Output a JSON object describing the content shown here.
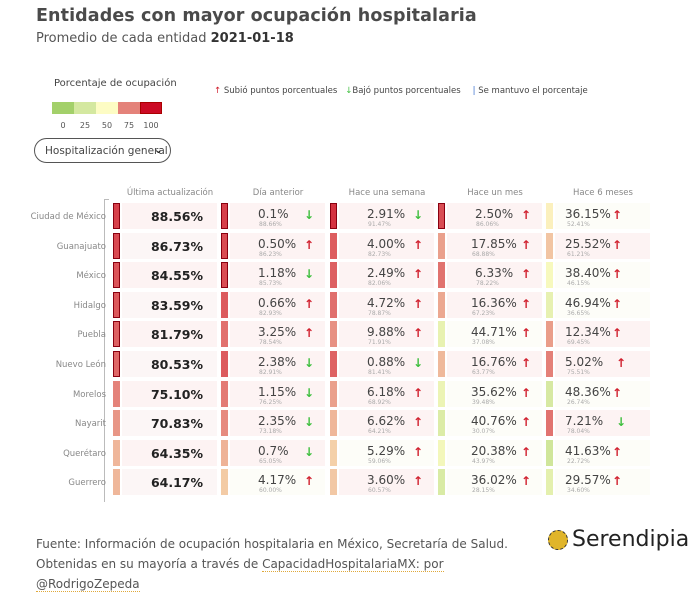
{
  "header": {
    "title": "Entidades con mayor ocupación hospitalaria",
    "subtitle_prefix": "Promedio de cada entidad",
    "subtitle_date": "2021-01-18"
  },
  "legend": {
    "title": "Porcentaje de ocupación",
    "swatch_colors": [
      "#a3d06a",
      "#d4e8a0",
      "#fdfcc4",
      "#e4827a",
      "#cc0a24"
    ],
    "ticks": [
      "0",
      "25",
      "50",
      "75",
      "100"
    ],
    "trend": {
      "up_icon": "arrow-up-icon",
      "up_label": "Subió puntos porcentuales",
      "down_icon": "arrow-down-icon",
      "down_label": "Bajó puntos porcentuales",
      "same_icon": "bar-icon",
      "same_label": "Se mantuvo el porcentaje"
    }
  },
  "dropdown": {
    "selected": "Hospitalización general",
    "icon": "chevron-down-icon"
  },
  "colors": {
    "up": "#d0202e",
    "down": "#3fbf3f",
    "same": "#3a6fcf",
    "cell_bg": "#fdf3f3"
  },
  "chart_data": {
    "type": "table",
    "title": "Entidades con mayor ocupación hospitalaria",
    "subtitle": "Promedio de cada entidad 2021-01-18",
    "columns": [
      "Última actualización",
      "Día anterior",
      "Hace una semana",
      "Hace un mes",
      "Hace 6 meses"
    ],
    "color_scale": {
      "domain": [
        0,
        25,
        50,
        75,
        100
      ],
      "colors": [
        "#a3d06a",
        "#d4e8a0",
        "#fdfcc4",
        "#e4827a",
        "#cc0a24"
      ]
    },
    "rows": [
      {
        "entity": "Ciudad de México",
        "latest": "88.56%",
        "latest_value": 88.56,
        "comparisons": [
          {
            "change": "0.1%",
            "prev": "88.66%",
            "prev_value": 88.66,
            "direction": "down"
          },
          {
            "change": "2.91%",
            "prev": "91.47%",
            "prev_value": 91.47,
            "direction": "down"
          },
          {
            "change": "2.50%",
            "prev": "86.06%",
            "prev_value": 86.06,
            "direction": "up"
          },
          {
            "change": "36.15%",
            "prev": "52.41%",
            "prev_value": 52.41,
            "direction": "up"
          }
        ]
      },
      {
        "entity": "Guanajuato",
        "latest": "86.73%",
        "latest_value": 86.73,
        "comparisons": [
          {
            "change": "0.50%",
            "prev": "86.23%",
            "prev_value": 86.23,
            "direction": "up"
          },
          {
            "change": "4.00%",
            "prev": "82.73%",
            "prev_value": 82.73,
            "direction": "up"
          },
          {
            "change": "17.85%",
            "prev": "68.88%",
            "prev_value": 68.88,
            "direction": "up"
          },
          {
            "change": "25.52%",
            "prev": "61.21%",
            "prev_value": 61.21,
            "direction": "up"
          }
        ]
      },
      {
        "entity": "México",
        "latest": "84.55%",
        "latest_value": 84.55,
        "comparisons": [
          {
            "change": "1.18%",
            "prev": "85.73%",
            "prev_value": 85.73,
            "direction": "down"
          },
          {
            "change": "2.49%",
            "prev": "82.06%",
            "prev_value": 82.06,
            "direction": "up"
          },
          {
            "change": "6.33%",
            "prev": "78.22%",
            "prev_value": 78.22,
            "direction": "up"
          },
          {
            "change": "38.40%",
            "prev": "46.15%",
            "prev_value": 46.15,
            "direction": "up"
          }
        ]
      },
      {
        "entity": "Hidalgo",
        "latest": "83.59%",
        "latest_value": 83.59,
        "comparisons": [
          {
            "change": "0.66%",
            "prev": "82.93%",
            "prev_value": 82.93,
            "direction": "up"
          },
          {
            "change": "4.72%",
            "prev": "78.87%",
            "prev_value": 78.87,
            "direction": "up"
          },
          {
            "change": "16.36%",
            "prev": "67.23%",
            "prev_value": 67.23,
            "direction": "up"
          },
          {
            "change": "46.94%",
            "prev": "36.65%",
            "prev_value": 36.65,
            "direction": "up"
          }
        ]
      },
      {
        "entity": "Puebla",
        "latest": "81.79%",
        "latest_value": 81.79,
        "comparisons": [
          {
            "change": "3.25%",
            "prev": "78.54%",
            "prev_value": 78.54,
            "direction": "up"
          },
          {
            "change": "9.88%",
            "prev": "71.91%",
            "prev_value": 71.91,
            "direction": "up"
          },
          {
            "change": "44.71%",
            "prev": "37.08%",
            "prev_value": 37.08,
            "direction": "up"
          },
          {
            "change": "12.34%",
            "prev": "69.45%",
            "prev_value": 69.45,
            "direction": "up"
          }
        ]
      },
      {
        "entity": "Nuevo León",
        "latest": "80.53%",
        "latest_value": 80.53,
        "comparisons": [
          {
            "change": "2.38%",
            "prev": "82.91%",
            "prev_value": 82.91,
            "direction": "down"
          },
          {
            "change": "0.88%",
            "prev": "81.41%",
            "prev_value": 81.41,
            "direction": "down"
          },
          {
            "change": "16.76%",
            "prev": "63.77%",
            "prev_value": 63.77,
            "direction": "up"
          },
          {
            "change": "5.02%",
            "prev": "75.51%",
            "prev_value": 75.51,
            "direction": "up"
          }
        ]
      },
      {
        "entity": "Morelos",
        "latest": "75.10%",
        "latest_value": 75.1,
        "comparisons": [
          {
            "change": "1.15%",
            "prev": "76.25%",
            "prev_value": 76.25,
            "direction": "down"
          },
          {
            "change": "6.18%",
            "prev": "68.92%",
            "prev_value": 68.92,
            "direction": "up"
          },
          {
            "change": "35.62%",
            "prev": "39.48%",
            "prev_value": 39.48,
            "direction": "up"
          },
          {
            "change": "48.36%",
            "prev": "26.74%",
            "prev_value": 26.74,
            "direction": "up"
          }
        ]
      },
      {
        "entity": "Nayarit",
        "latest": "70.83%",
        "latest_value": 70.83,
        "comparisons": [
          {
            "change": "2.35%",
            "prev": "73.18%",
            "prev_value": 73.18,
            "direction": "down"
          },
          {
            "change": "6.62%",
            "prev": "64.21%",
            "prev_value": 64.21,
            "direction": "up"
          },
          {
            "change": "40.76%",
            "prev": "30.07%",
            "prev_value": 30.07,
            "direction": "up"
          },
          {
            "change": "7.21%",
            "prev": "78.04%",
            "prev_value": 78.04,
            "direction": "down"
          }
        ]
      },
      {
        "entity": "Querétaro",
        "latest": "64.35%",
        "latest_value": 64.35,
        "comparisons": [
          {
            "change": "0.7%",
            "prev": "65.05%",
            "prev_value": 65.05,
            "direction": "down"
          },
          {
            "change": "5.29%",
            "prev": "59.06%",
            "prev_value": 59.06,
            "direction": "up"
          },
          {
            "change": "20.38%",
            "prev": "43.97%",
            "prev_value": 43.97,
            "direction": "up"
          },
          {
            "change": "41.63%",
            "prev": "22.72%",
            "prev_value": 22.72,
            "direction": "up"
          }
        ]
      },
      {
        "entity": "Guerrero",
        "latest": "64.17%",
        "latest_value": 64.17,
        "comparisons": [
          {
            "change": "4.17%",
            "prev": "60.00%",
            "prev_value": 60.0,
            "direction": "up"
          },
          {
            "change": "3.60%",
            "prev": "60.57%",
            "prev_value": 60.57,
            "direction": "up"
          },
          {
            "change": "36.02%",
            "prev": "28.15%",
            "prev_value": 28.15,
            "direction": "up"
          },
          {
            "change": "29.57%",
            "prev": "34.60%",
            "prev_value": 34.6,
            "direction": "up"
          }
        ]
      }
    ]
  },
  "footer": {
    "source_line1": "Fuente: Información de ocupación hospitalaria en México, Secretaría de Salud.",
    "source_line2_prefix": "Obtenidas en su mayoría a través de",
    "link_text": "CapacidadHospitalariaMX: por",
    "link_author": "@RodrigoZepeda",
    "logo_text": "Serendipia",
    "logo_icon": "serendipia-logo-icon"
  }
}
